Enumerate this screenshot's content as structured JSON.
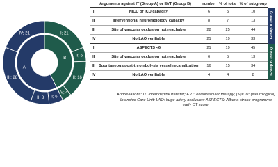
{
  "chart_data": {
    "type": "donut",
    "inner": {
      "categories": [
        "B",
        "A"
      ],
      "values": [
        47,
        63
      ],
      "colors": [
        "#1f5b4b",
        "#243a68"
      ]
    },
    "outer": {
      "values": [
        21,
        6,
        16,
        4,
        6,
        8,
        28,
        21
      ],
      "value_labels": [
        "I; 21",
        "II; 6",
        "III; 16",
        "IV; 4",
        "I; 6",
        "II; 8",
        "III; 28",
        "IV; 21"
      ],
      "colors": [
        "#1f5b4b",
        "#1f5b4b",
        "#1f5b4b",
        "#1f5b4b",
        "#243a68",
        "#243a68",
        "#243a68",
        "#243a68"
      ]
    }
  },
  "table": {
    "header": [
      "Arguments against IT (Group A) or EVT (Group B)",
      "number",
      "% of total",
      "% of subgroup"
    ],
    "groups": [
      {
        "label": "Group A (n=63)",
        "color": "#243a68",
        "rows": [
          [
            "I",
            "NICU or ICU capacity",
            "6",
            "5",
            "10"
          ],
          [
            "II",
            "Interventional neuroradiology capacity",
            "8",
            "7",
            "13"
          ],
          [
            "III",
            "Site of vascular occlusion not reachable",
            "28",
            "25",
            "44"
          ],
          [
            "IV",
            "No LAO verifiable",
            "21",
            "19",
            "33"
          ]
        ]
      },
      {
        "label": "Group B (n=47)",
        "color": "#1f5b4b",
        "rows": [
          [
            "I",
            "ASPECTS <6",
            "21",
            "19",
            "45"
          ],
          [
            "II",
            "Site of vascular occlusion not reachable",
            "6",
            "5",
            "13"
          ],
          [
            "III",
            "Spontaneous/post-thrombolysis vessel recanalization",
            "16",
            "15",
            "34"
          ],
          [
            "IV",
            "No LAO verifiable",
            "4",
            "4",
            "8"
          ]
        ]
      }
    ]
  },
  "abbreviations": "Abbreviations: IT: Interhospital transfer; EVT: endovascular therapy; (N)ICU: (Neurological) Intensive Care Unit; LAO: large artery occlusion; ASPECTS: Alberta stroke programme early CT score."
}
